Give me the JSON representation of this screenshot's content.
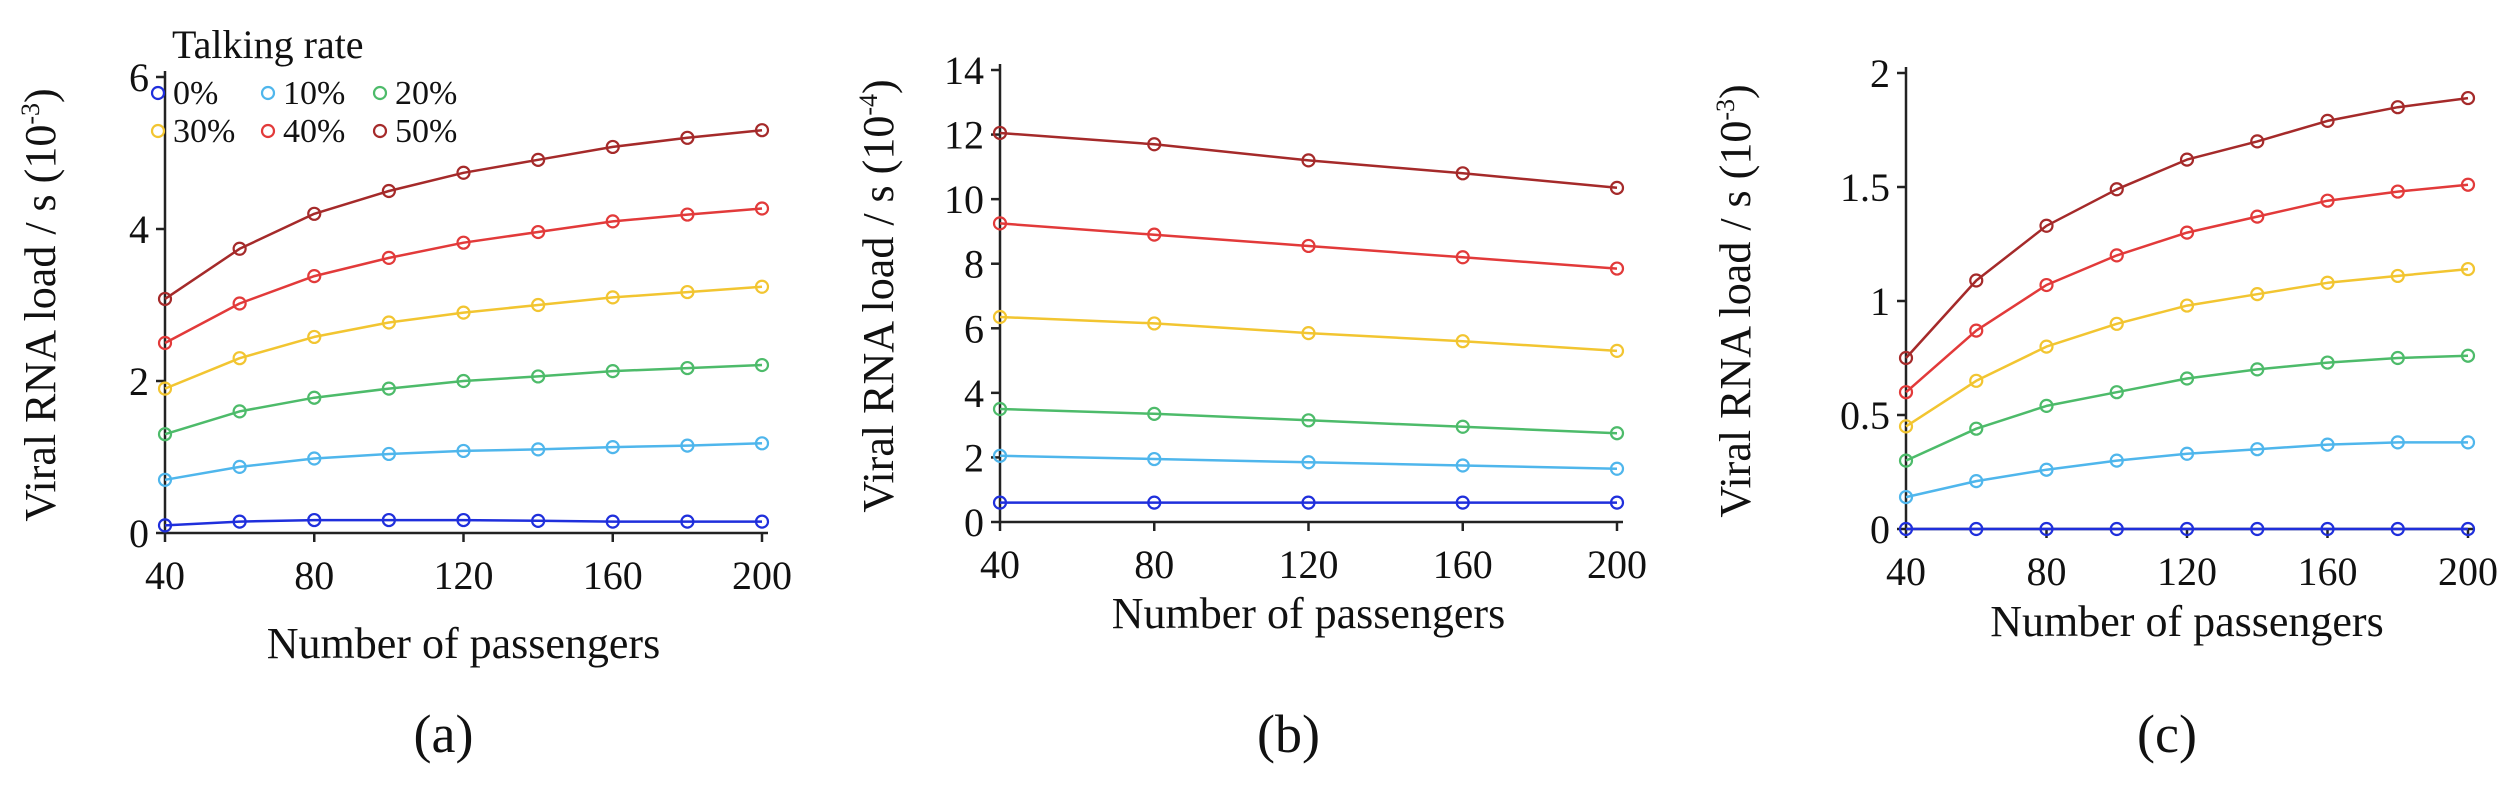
{
  "chart_data": [
    {
      "type": "line",
      "panel_label": "(a)",
      "xlabel": "Number of passengers",
      "ylabel_main": "Viral RNA load / s (10",
      "ylabel_exp": "-3",
      "ylabel_close": ")",
      "xlim": [
        40,
        200
      ],
      "ylim": [
        0,
        6
      ],
      "xticks": [
        40,
        80,
        120,
        160,
        200
      ],
      "yticks": [
        0,
        2,
        4,
        6
      ],
      "ytick_labels": [
        "0",
        "2",
        "4",
        "6"
      ],
      "legend": {
        "title": "Talking rate",
        "placement": "top-left",
        "entries": [
          "0%",
          "10%",
          "20%",
          "30%",
          "40%",
          "50%"
        ]
      },
      "series": [
        {
          "name": "0%",
          "color": "#1f2fdc",
          "x": [
            40,
            60,
            80,
            100,
            120,
            140,
            160,
            180,
            200
          ],
          "values": [
            0.1,
            0.15,
            0.17,
            0.17,
            0.17,
            0.16,
            0.15,
            0.15,
            0.15
          ]
        },
        {
          "name": "10%",
          "color": "#4fb6ec",
          "x": [
            40,
            60,
            80,
            100,
            120,
            140,
            160,
            180,
            200
          ],
          "values": [
            0.7,
            0.87,
            0.98,
            1.04,
            1.08,
            1.1,
            1.13,
            1.15,
            1.18
          ]
        },
        {
          "name": "20%",
          "color": "#4dbb6a",
          "x": [
            40,
            60,
            80,
            100,
            120,
            140,
            160,
            180,
            200
          ],
          "values": [
            1.3,
            1.6,
            1.78,
            1.9,
            2.0,
            2.06,
            2.13,
            2.17,
            2.21
          ]
        },
        {
          "name": "30%",
          "color": "#f2c531",
          "x": [
            40,
            60,
            80,
            100,
            120,
            140,
            160,
            180,
            200
          ],
          "values": [
            1.9,
            2.3,
            2.58,
            2.77,
            2.9,
            3.0,
            3.1,
            3.17,
            3.24
          ]
        },
        {
          "name": "40%",
          "color": "#e23a3a",
          "x": [
            40,
            60,
            80,
            100,
            120,
            140,
            160,
            180,
            200
          ],
          "values": [
            2.5,
            3.02,
            3.38,
            3.62,
            3.82,
            3.96,
            4.1,
            4.19,
            4.27
          ]
        },
        {
          "name": "50%",
          "color": "#a52a2a",
          "x": [
            40,
            60,
            80,
            100,
            120,
            140,
            160,
            180,
            200
          ],
          "values": [
            3.08,
            3.74,
            4.2,
            4.5,
            4.74,
            4.91,
            5.08,
            5.2,
            5.3
          ]
        }
      ]
    },
    {
      "type": "line",
      "panel_label": "(b)",
      "xlabel": "Number of passengers",
      "ylabel_main": "Viral RNA load / s (10",
      "ylabel_exp": "-4",
      "ylabel_close": ")",
      "xlim": [
        40,
        200
      ],
      "ylim": [
        0,
        14
      ],
      "xticks": [
        40,
        80,
        120,
        160,
        200
      ],
      "yticks": [
        0,
        2,
        4,
        6,
        8,
        10,
        12,
        14
      ],
      "ytick_labels": [
        "0",
        "2",
        "4",
        "6",
        "8",
        "10",
        "12",
        "14"
      ],
      "series": [
        {
          "name": "0%",
          "color": "#1f2fdc",
          "x": [
            40,
            80,
            120,
            160,
            200
          ],
          "values": [
            0.6,
            0.6,
            0.6,
            0.6,
            0.6
          ]
        },
        {
          "name": "10%",
          "color": "#4fb6ec",
          "x": [
            40,
            80,
            120,
            160,
            200
          ],
          "values": [
            2.05,
            1.95,
            1.85,
            1.75,
            1.65
          ]
        },
        {
          "name": "20%",
          "color": "#4dbb6a",
          "x": [
            40,
            80,
            120,
            160,
            200
          ],
          "values": [
            3.5,
            3.35,
            3.15,
            2.95,
            2.75
          ]
        },
        {
          "name": "30%",
          "color": "#f2c531",
          "x": [
            40,
            80,
            120,
            160,
            200
          ],
          "values": [
            6.35,
            6.15,
            5.85,
            5.6,
            5.3
          ]
        },
        {
          "name": "40%",
          "color": "#e23a3a",
          "x": [
            40,
            80,
            120,
            160,
            200
          ],
          "values": [
            9.25,
            8.9,
            8.55,
            8.2,
            7.85
          ]
        },
        {
          "name": "50%",
          "color": "#a52a2a",
          "x": [
            40,
            80,
            120,
            160,
            200
          ],
          "values": [
            12.05,
            11.7,
            11.2,
            10.8,
            10.35
          ]
        }
      ]
    },
    {
      "type": "line",
      "panel_label": "(c)",
      "xlabel": "Number of passengers",
      "ylabel_main": "Viral RNA load / s (10",
      "ylabel_exp": "-3",
      "ylabel_close": ")",
      "xlim": [
        40,
        200
      ],
      "ylim": [
        0,
        2
      ],
      "xticks": [
        40,
        80,
        120,
        160,
        200
      ],
      "yticks": [
        0,
        0.5,
        1,
        1.5,
        2
      ],
      "ytick_labels": [
        "0",
        "0.5",
        "1",
        "1.5",
        "2"
      ],
      "series": [
        {
          "name": "0%",
          "color": "#1f2fdc",
          "x": [
            40,
            60,
            80,
            100,
            120,
            140,
            160,
            180,
            200
          ],
          "values": [
            0,
            0,
            0,
            0,
            0,
            0,
            0,
            0,
            0
          ]
        },
        {
          "name": "10%",
          "color": "#4fb6ec",
          "x": [
            40,
            60,
            80,
            100,
            120,
            140,
            160,
            180,
            200
          ],
          "values": [
            0.14,
            0.21,
            0.26,
            0.3,
            0.33,
            0.35,
            0.37,
            0.38,
            0.38
          ]
        },
        {
          "name": "20%",
          "color": "#4dbb6a",
          "x": [
            40,
            60,
            80,
            100,
            120,
            140,
            160,
            180,
            200
          ],
          "values": [
            0.3,
            0.44,
            0.54,
            0.6,
            0.66,
            0.7,
            0.73,
            0.75,
            0.76
          ]
        },
        {
          "name": "30%",
          "color": "#f2c531",
          "x": [
            40,
            60,
            80,
            100,
            120,
            140,
            160,
            180,
            200
          ],
          "values": [
            0.45,
            0.65,
            0.8,
            0.9,
            0.98,
            1.03,
            1.08,
            1.11,
            1.14
          ]
        },
        {
          "name": "40%",
          "color": "#e23a3a",
          "x": [
            40,
            60,
            80,
            100,
            120,
            140,
            160,
            180,
            200
          ],
          "values": [
            0.6,
            0.87,
            1.07,
            1.2,
            1.3,
            1.37,
            1.44,
            1.48,
            1.51
          ]
        },
        {
          "name": "50%",
          "color": "#a52a2a",
          "x": [
            40,
            60,
            80,
            100,
            120,
            140,
            160,
            180,
            200
          ],
          "values": [
            0.75,
            1.09,
            1.33,
            1.49,
            1.62,
            1.7,
            1.79,
            1.85,
            1.89
          ]
        }
      ]
    }
  ]
}
